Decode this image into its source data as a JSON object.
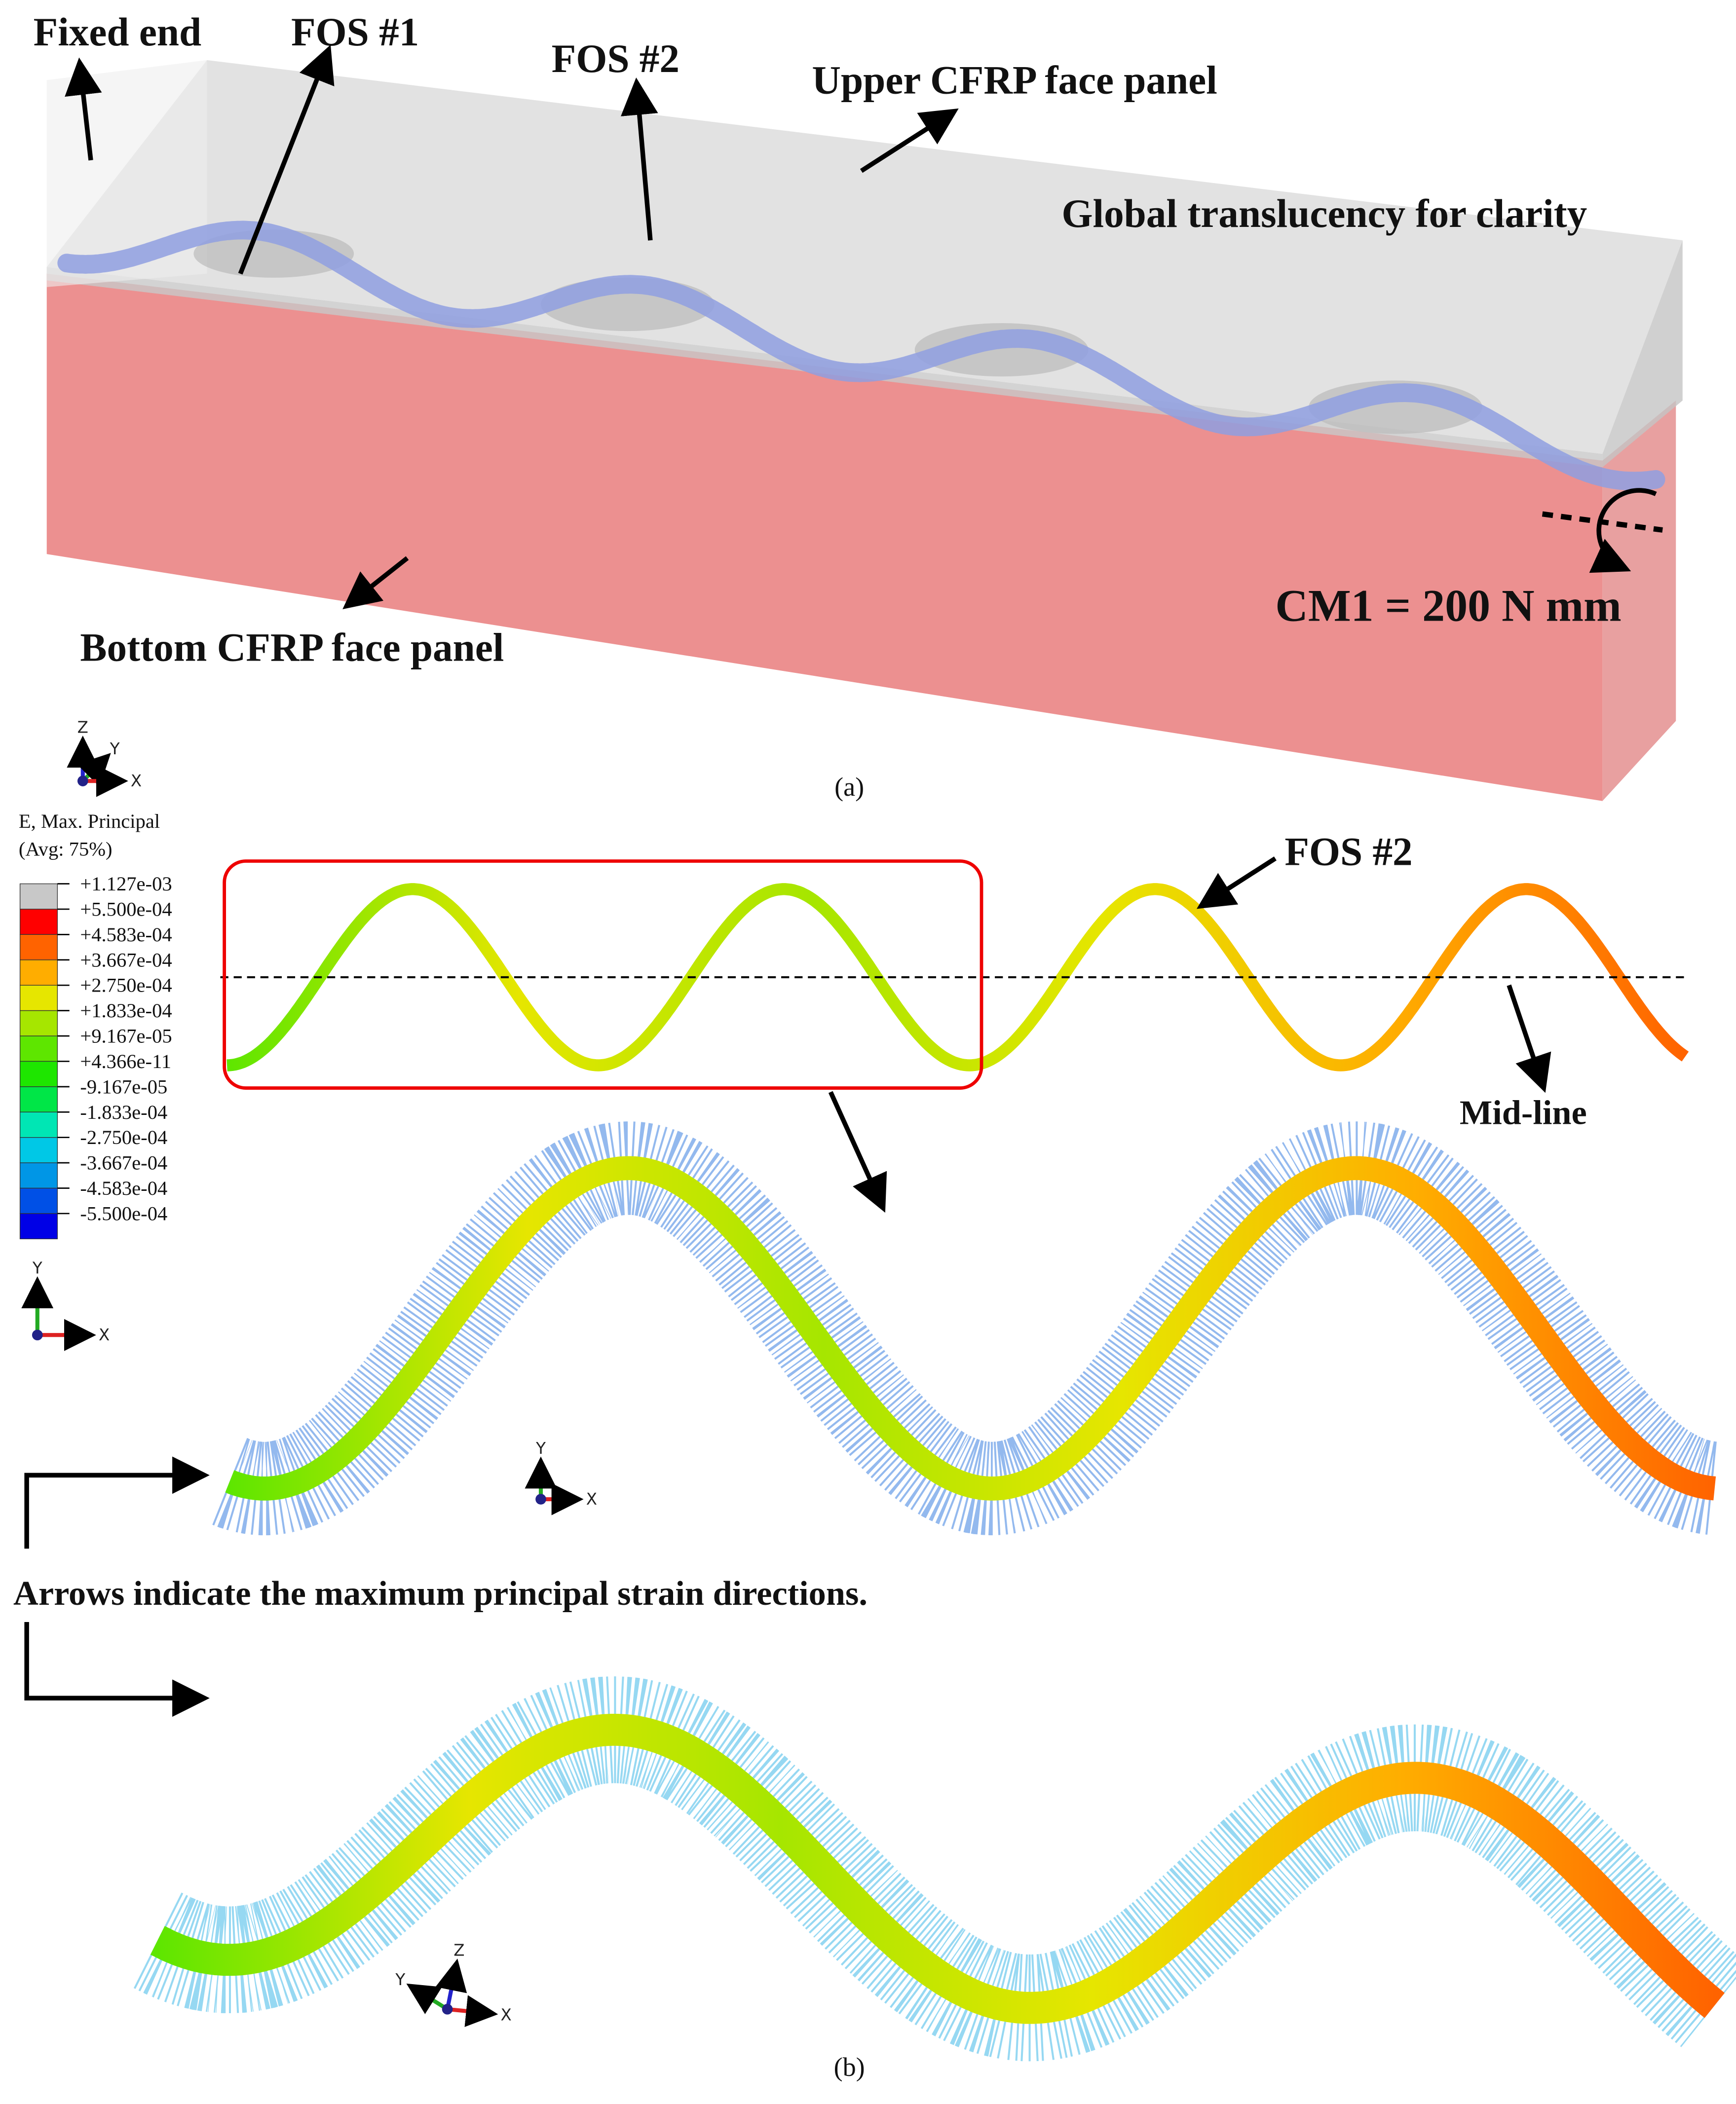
{
  "panel_a": {
    "labels": {
      "fixed_end": "Fixed end",
      "fos1": "FOS #1",
      "fos2": "FOS #2",
      "upper": "Upper CFRP face panel",
      "translucency": "Global translucency for clarity",
      "moment": "CM1 = 200 N mm",
      "bottom": "Bottom CFRP face panel"
    },
    "triad": [
      "Z",
      "Y",
      "X"
    ],
    "caption": "(a)"
  },
  "panel_b": {
    "legend": {
      "title": "E, Max. Principal",
      "subtitle": "(Avg: 75%)",
      "labels": [
        "+1.127e-03",
        "+5.500e-04",
        "+4.583e-04",
        "+3.667e-04",
        "+2.750e-04",
        "+1.833e-04",
        "+9.167e-05",
        "+4.366e-11",
        "-9.167e-05",
        "-1.833e-04",
        "-2.750e-04",
        "-3.667e-04",
        "-4.583e-04",
        "-5.500e-04"
      ],
      "colors": [
        "#c8c8c8",
        "#ff0000",
        "#ff6300",
        "#ffad00",
        "#e6e600",
        "#a6e600",
        "#5ee600",
        "#1ee600",
        "#00e647",
        "#00e6b4",
        "#00c8e6",
        "#0096e6",
        "#0050e6",
        "#0000e6"
      ]
    },
    "legend_triad": [
      "Y",
      "X"
    ],
    "fos2": "FOS #2",
    "midline": "Mid-line",
    "zoom_triad": [
      "Y",
      "X"
    ],
    "arrows_note": "Arrows indicate the maximum principal strain directions.",
    "iso_triad": [
      "Y",
      "Z",
      "X"
    ],
    "caption": "(b)"
  }
}
